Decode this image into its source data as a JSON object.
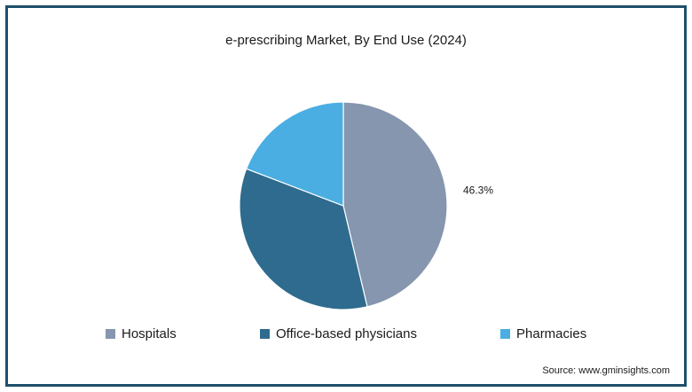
{
  "chart_data": {
    "type": "pie",
    "title": "e-prescribing Market, By End Use (2024)",
    "categories": [
      "Hospitals",
      "Office-based physicians",
      "Pharmacies"
    ],
    "values": [
      46.3,
      34.5,
      19.2
    ],
    "labels": [
      "46.3%",
      "",
      ""
    ],
    "colors": [
      "#8596ae",
      "#2e6b8e",
      "#4aaee2"
    ],
    "legend": "bottom"
  },
  "footer": {
    "source": "Source: www.gminsights.com"
  }
}
